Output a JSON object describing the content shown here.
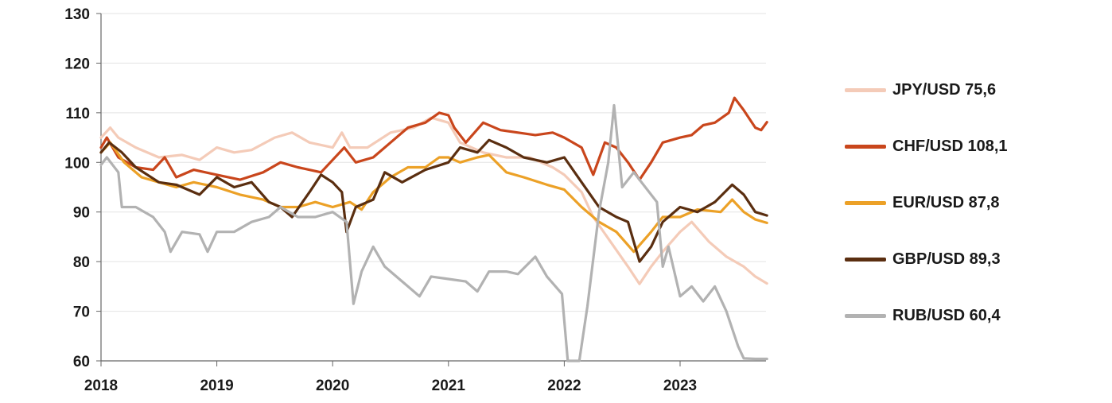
{
  "chart_data": {
    "type": "line",
    "title": "",
    "xlabel": "",
    "ylabel": "",
    "xlim": [
      2018,
      2023.75
    ],
    "ylim": [
      60,
      130
    ],
    "y_ticks": [
      60,
      70,
      80,
      90,
      100,
      110,
      120,
      130
    ],
    "x_ticks": [
      "2018",
      "2019",
      "2020",
      "2021",
      "2022",
      "2023"
    ],
    "grid": "horizontal",
    "legend_position": "right",
    "series": [
      {
        "name": "JPY/USD 75,6",
        "color": "#f4cbb8",
        "points": [
          [
            2018,
            105
          ],
          [
            2018.08,
            107
          ],
          [
            2018.15,
            105
          ],
          [
            2018.3,
            103
          ],
          [
            2018.5,
            101
          ],
          [
            2018.7,
            101.5
          ],
          [
            2018.85,
            100.5
          ],
          [
            2019,
            103
          ],
          [
            2019.15,
            102
          ],
          [
            2019.3,
            102.5
          ],
          [
            2019.5,
            105
          ],
          [
            2019.65,
            106
          ],
          [
            2019.8,
            104
          ],
          [
            2020,
            103
          ],
          [
            2020.08,
            106
          ],
          [
            2020.15,
            103
          ],
          [
            2020.3,
            103
          ],
          [
            2020.5,
            106
          ],
          [
            2020.7,
            107
          ],
          [
            2020.85,
            109
          ],
          [
            2021,
            108
          ],
          [
            2021.1,
            104
          ],
          [
            2021.3,
            102
          ],
          [
            2021.5,
            101
          ],
          [
            2021.7,
            101
          ],
          [
            2021.9,
            99
          ],
          [
            2022,
            97.5
          ],
          [
            2022.15,
            94
          ],
          [
            2022.25,
            89
          ],
          [
            2022.4,
            84
          ],
          [
            2022.55,
            79
          ],
          [
            2022.65,
            75.5
          ],
          [
            2022.75,
            79
          ],
          [
            2022.85,
            82
          ],
          [
            2023,
            86
          ],
          [
            2023.1,
            88
          ],
          [
            2023.25,
            84
          ],
          [
            2023.4,
            81
          ],
          [
            2023.55,
            79
          ],
          [
            2023.65,
            77
          ],
          [
            2023.75,
            75.6
          ]
        ]
      },
      {
        "name": "CHF/USD 108,1",
        "color": "#c9461c",
        "points": [
          [
            2018,
            103
          ],
          [
            2018.05,
            105
          ],
          [
            2018.15,
            101
          ],
          [
            2018.3,
            99
          ],
          [
            2018.45,
            98.5
          ],
          [
            2018.55,
            101
          ],
          [
            2018.65,
            97
          ],
          [
            2018.8,
            98.5
          ],
          [
            2019,
            97.5
          ],
          [
            2019.2,
            96.5
          ],
          [
            2019.4,
            98
          ],
          [
            2019.55,
            100
          ],
          [
            2019.7,
            99
          ],
          [
            2019.9,
            98
          ],
          [
            2020,
            100.5
          ],
          [
            2020.1,
            103
          ],
          [
            2020.2,
            100
          ],
          [
            2020.35,
            101
          ],
          [
            2020.5,
            104
          ],
          [
            2020.65,
            107
          ],
          [
            2020.8,
            108
          ],
          [
            2020.92,
            110
          ],
          [
            2021,
            109.5
          ],
          [
            2021.05,
            107
          ],
          [
            2021.15,
            104
          ],
          [
            2021.3,
            108
          ],
          [
            2021.45,
            106.5
          ],
          [
            2021.6,
            106
          ],
          [
            2021.75,
            105.5
          ],
          [
            2021.9,
            106
          ],
          [
            2022,
            105
          ],
          [
            2022.15,
            103
          ],
          [
            2022.25,
            97.5
          ],
          [
            2022.35,
            104
          ],
          [
            2022.45,
            103
          ],
          [
            2022.55,
            100
          ],
          [
            2022.65,
            96.5
          ],
          [
            2022.75,
            100
          ],
          [
            2022.85,
            104
          ],
          [
            2023,
            105
          ],
          [
            2023.1,
            105.5
          ],
          [
            2023.2,
            107.5
          ],
          [
            2023.3,
            108
          ],
          [
            2023.42,
            110
          ],
          [
            2023.47,
            113
          ],
          [
            2023.55,
            110.5
          ],
          [
            2023.65,
            107
          ],
          [
            2023.7,
            106.5
          ],
          [
            2023.75,
            108.1
          ]
        ]
      },
      {
        "name": "EUR/USD 87,8",
        "color": "#eca127",
        "points": [
          [
            2018,
            102
          ],
          [
            2018.08,
            104
          ],
          [
            2018.2,
            100
          ],
          [
            2018.35,
            97
          ],
          [
            2018.5,
            96
          ],
          [
            2018.65,
            95
          ],
          [
            2018.8,
            96
          ],
          [
            2019,
            95
          ],
          [
            2019.2,
            93.5
          ],
          [
            2019.4,
            92.5
          ],
          [
            2019.55,
            91
          ],
          [
            2019.7,
            91
          ],
          [
            2019.85,
            92
          ],
          [
            2020,
            91
          ],
          [
            2020.15,
            92
          ],
          [
            2020.25,
            90.5
          ],
          [
            2020.35,
            94
          ],
          [
            2020.5,
            97
          ],
          [
            2020.65,
            99
          ],
          [
            2020.8,
            99
          ],
          [
            2020.92,
            101
          ],
          [
            2021,
            101
          ],
          [
            2021.1,
            100
          ],
          [
            2021.25,
            101
          ],
          [
            2021.35,
            101.5
          ],
          [
            2021.5,
            98
          ],
          [
            2021.65,
            97
          ],
          [
            2021.85,
            95.5
          ],
          [
            2022,
            94.5
          ],
          [
            2022.15,
            91
          ],
          [
            2022.3,
            88
          ],
          [
            2022.45,
            86
          ],
          [
            2022.6,
            82
          ],
          [
            2022.75,
            86
          ],
          [
            2022.85,
            89
          ],
          [
            2023,
            89
          ],
          [
            2023.15,
            90.5
          ],
          [
            2023.35,
            90
          ],
          [
            2023.45,
            92.5
          ],
          [
            2023.55,
            90
          ],
          [
            2023.65,
            88.5
          ],
          [
            2023.75,
            87.8
          ]
        ]
      },
      {
        "name": "GBP/USD 89,3",
        "color": "#5a2e10",
        "points": [
          [
            2018,
            102
          ],
          [
            2018.07,
            104
          ],
          [
            2018.18,
            102
          ],
          [
            2018.3,
            99
          ],
          [
            2018.5,
            96
          ],
          [
            2018.65,
            95.5
          ],
          [
            2018.85,
            93.5
          ],
          [
            2019,
            97
          ],
          [
            2019.15,
            95
          ],
          [
            2019.3,
            96
          ],
          [
            2019.45,
            92
          ],
          [
            2019.55,
            91
          ],
          [
            2019.65,
            89
          ],
          [
            2019.8,
            94
          ],
          [
            2019.9,
            97.5
          ],
          [
            2020,
            96
          ],
          [
            2020.08,
            94
          ],
          [
            2020.12,
            86
          ],
          [
            2020.2,
            91
          ],
          [
            2020.35,
            92.5
          ],
          [
            2020.45,
            98
          ],
          [
            2020.6,
            96
          ],
          [
            2020.8,
            98.5
          ],
          [
            2021,
            100
          ],
          [
            2021.1,
            103
          ],
          [
            2021.25,
            102
          ],
          [
            2021.35,
            104.5
          ],
          [
            2021.5,
            103
          ],
          [
            2021.65,
            101
          ],
          [
            2021.85,
            100
          ],
          [
            2022,
            101
          ],
          [
            2022.15,
            96
          ],
          [
            2022.3,
            91
          ],
          [
            2022.45,
            89
          ],
          [
            2022.55,
            88
          ],
          [
            2022.65,
            80
          ],
          [
            2022.75,
            83
          ],
          [
            2022.85,
            88
          ],
          [
            2023,
            91
          ],
          [
            2023.15,
            90
          ],
          [
            2023.3,
            92
          ],
          [
            2023.45,
            95.5
          ],
          [
            2023.55,
            93.5
          ],
          [
            2023.65,
            90
          ],
          [
            2023.75,
            89.3
          ]
        ]
      },
      {
        "name": "RUB/USD 60,4",
        "color": "#b2b2b2",
        "points": [
          [
            2018,
            99.5
          ],
          [
            2018.05,
            101
          ],
          [
            2018.15,
            98
          ],
          [
            2018.18,
            91
          ],
          [
            2018.3,
            91
          ],
          [
            2018.45,
            89
          ],
          [
            2018.55,
            86
          ],
          [
            2018.6,
            82
          ],
          [
            2018.7,
            86
          ],
          [
            2018.85,
            85.5
          ],
          [
            2018.92,
            82
          ],
          [
            2019,
            86
          ],
          [
            2019.15,
            86
          ],
          [
            2019.3,
            88
          ],
          [
            2019.45,
            89
          ],
          [
            2019.55,
            91
          ],
          [
            2019.7,
            89
          ],
          [
            2019.85,
            89
          ],
          [
            2020,
            90
          ],
          [
            2020.12,
            88
          ],
          [
            2020.18,
            71.5
          ],
          [
            2020.25,
            78
          ],
          [
            2020.35,
            83
          ],
          [
            2020.45,
            79
          ],
          [
            2020.6,
            76
          ],
          [
            2020.75,
            73
          ],
          [
            2020.85,
            77
          ],
          [
            2021,
            76.5
          ],
          [
            2021.15,
            76
          ],
          [
            2021.25,
            74
          ],
          [
            2021.35,
            78
          ],
          [
            2021.5,
            78
          ],
          [
            2021.6,
            77.5
          ],
          [
            2021.75,
            81
          ],
          [
            2021.85,
            77
          ],
          [
            2021.98,
            73.5
          ],
          [
            2022.03,
            60
          ],
          [
            2022.08,
            60
          ],
          [
            2022.13,
            60
          ],
          [
            2022.2,
            71
          ],
          [
            2022.3,
            90
          ],
          [
            2022.38,
            100
          ],
          [
            2022.43,
            111.5
          ],
          [
            2022.5,
            95
          ],
          [
            2022.6,
            98
          ],
          [
            2022.7,
            95
          ],
          [
            2022.8,
            92
          ],
          [
            2022.85,
            79
          ],
          [
            2022.9,
            83
          ],
          [
            2023,
            73
          ],
          [
            2023.1,
            75
          ],
          [
            2023.2,
            72
          ],
          [
            2023.3,
            75
          ],
          [
            2023.4,
            70
          ],
          [
            2023.5,
            63
          ],
          [
            2023.55,
            60.5
          ],
          [
            2023.65,
            60.4
          ],
          [
            2023.75,
            60.4
          ]
        ]
      }
    ]
  }
}
